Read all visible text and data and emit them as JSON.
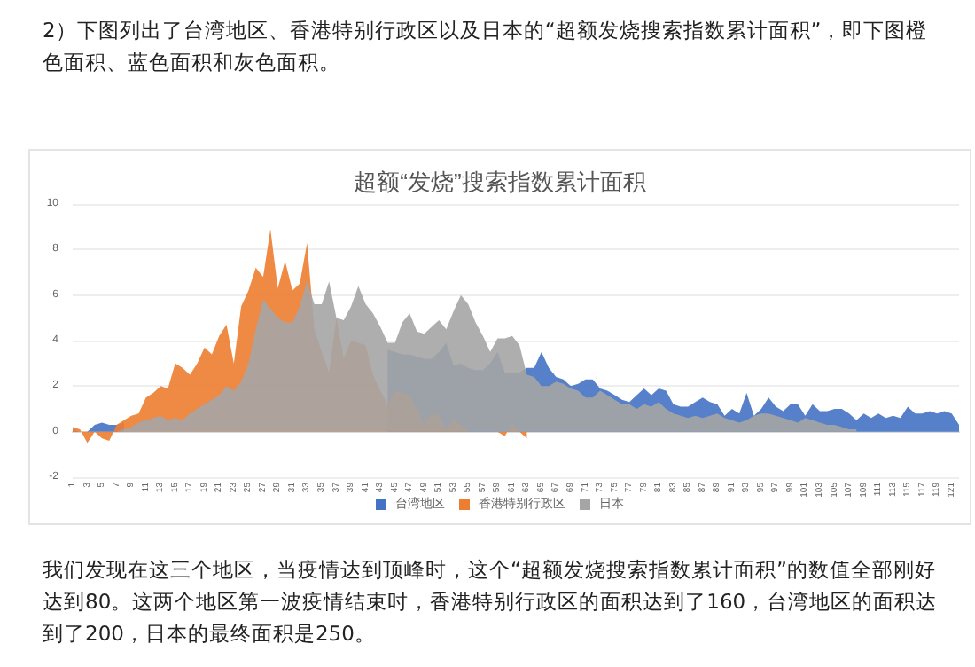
{
  "chart_data": {
    "type": "area",
    "title": "超额“发烧”搜索指数累计面积",
    "annotations": [
      "2）下图列出了台湾地区、香港特别行政区以及日本的“超额发烧搜索指数累计面积”，即下图橙色面积、蓝色面积和灰色面积。",
      "我们发现在这三个地区，当疫情达到顶峰时，这个“超额发烧搜索指数累计面积”的数值全部刚好达到80。这两个地区第一波疫情结束时，香港特别行政区的面积达到了160，台湾地区的面积达到了200，日本的最终面积是250。"
    ],
    "categories": [
      "1",
      null,
      "3",
      null,
      "5",
      null,
      "7",
      null,
      "9",
      null,
      "11",
      null,
      "13",
      null,
      "15",
      null,
      "17",
      null,
      "19",
      null,
      "21",
      null,
      "23",
      null,
      "25",
      null,
      "27",
      null,
      "29",
      null,
      "31",
      null,
      "33",
      null,
      "35",
      null,
      "37",
      null,
      "39",
      null,
      "41",
      null,
      "43",
      null,
      "45",
      null,
      "47",
      null,
      "49",
      null,
      "51",
      null,
      "53",
      null,
      "55",
      null,
      "57",
      null,
      "59",
      null,
      "61",
      null,
      "63",
      null,
      "65",
      null,
      "67",
      null,
      "69",
      null,
      "71",
      null,
      "73",
      null,
      "75",
      null,
      "77",
      null,
      "79",
      null,
      "81",
      null,
      "83",
      null,
      "85",
      null,
      "87",
      null,
      "89",
      null,
      "91",
      null,
      "93",
      null,
      "95",
      null,
      "97",
      null,
      "99",
      null,
      "101",
      null,
      "103",
      null,
      "105",
      null,
      "107",
      null,
      "109",
      null,
      "111",
      null,
      "113",
      null,
      "115",
      null,
      "117",
      null,
      "119",
      null,
      "121",
      null
    ],
    "series": [
      {
        "name": "台湾地区",
        "color": "#4472c4",
        "values": [
          0.1,
          0,
          0,
          0.3,
          0.4,
          0.3,
          0.3,
          0.4,
          null,
          null,
          null,
          null,
          null,
          null,
          null,
          null,
          null,
          null,
          null,
          null,
          null,
          null,
          null,
          null,
          null,
          null,
          null,
          null,
          null,
          null,
          null,
          null,
          null,
          null,
          null,
          null,
          null,
          null,
          null,
          null,
          null,
          null,
          null,
          3.6,
          3.5,
          3.4,
          3.4,
          3.3,
          3.2,
          3.2,
          3.5,
          3.9,
          2.9,
          3.0,
          2.8,
          2.7,
          2.7,
          3.0,
          3.5,
          2.6,
          2.6,
          2.6,
          2.8,
          2.8,
          3.5,
          2.8,
          2.4,
          2.3,
          2.0,
          2.1,
          2.3,
          2.3,
          1.9,
          1.8,
          1.6,
          1.4,
          1.3,
          1.6,
          1.9,
          1.6,
          1.9,
          1.8,
          1.2,
          1.1,
          1.1,
          1.3,
          1.5,
          1.3,
          1.2,
          0.7,
          1.0,
          0.8,
          1.7,
          0.7,
          1.0,
          1.5,
          1.1,
          0.9,
          1.2,
          1.2,
          0.7,
          1.2,
          0.9,
          0.9,
          1.0,
          1.0,
          0.8,
          0.5,
          0.8,
          0.6,
          0.8,
          0.6,
          0.7,
          0.6,
          1.1,
          0.8,
          0.8,
          0.9,
          0.8,
          0.9,
          0.8,
          0.3
        ]
      },
      {
        "name": "香港特别行政区",
        "color": "#ed7d31",
        "values": [
          0.2,
          0.1,
          -0.5,
          0,
          -0.3,
          -0.4,
          0.3,
          0.5,
          0.7,
          0.8,
          1.5,
          1.7,
          2.0,
          1.9,
          3.0,
          2.8,
          2.5,
          3.0,
          3.7,
          3.4,
          4.2,
          4.7,
          3.0,
          5.5,
          6.2,
          7.2,
          6.8,
          8.9,
          6.3,
          7.5,
          6.2,
          6.5,
          8.3,
          4.5,
          3.5,
          2.6,
          5.0,
          3.2,
          4.0,
          3.9,
          3.8,
          2.5,
          1.8,
          1.2,
          1.8,
          1.7,
          1.6,
          1.0,
          0.3,
          0.8,
          0.7,
          0.1,
          0.5,
          0.3,
          0,
          0,
          0,
          0,
          0,
          -0.2,
          0.4,
          0,
          -0.3,
          null,
          null,
          null,
          null,
          null,
          null,
          null,
          null,
          null,
          null,
          null,
          null,
          null,
          null,
          null,
          null,
          null,
          null,
          null,
          null,
          null,
          null,
          null,
          null,
          null,
          null,
          null,
          null,
          null,
          null,
          null,
          null,
          null,
          null,
          null,
          null,
          null,
          null,
          null,
          null,
          null,
          null,
          null,
          null,
          null,
          null,
          null,
          null,
          null,
          null,
          null,
          null,
          null,
          null,
          null,
          null,
          null,
          null,
          null
        ]
      },
      {
        "name": "日本",
        "color": "#a5a5a5",
        "values": [
          0,
          0,
          0,
          0,
          0,
          0,
          0,
          0.1,
          0.2,
          0.4,
          0.5,
          0.6,
          0.7,
          0.5,
          0.6,
          0.5,
          0.8,
          1.0,
          1.2,
          1.4,
          1.6,
          2.0,
          1.8,
          2.2,
          3.0,
          4.5,
          5.8,
          5.4,
          5.0,
          4.8,
          4.8,
          5.5,
          6.6,
          5.6,
          5.6,
          6.6,
          5.0,
          4.9,
          5.5,
          6.4,
          5.6,
          5.2,
          4.6,
          3.9,
          3.9,
          4.8,
          5.2,
          4.4,
          4.3,
          4.6,
          4.9,
          4.5,
          5.3,
          6.0,
          5.6,
          4.8,
          4.2,
          3.5,
          4.1,
          4.1,
          4.2,
          3.8,
          2.5,
          2.4,
          2.0,
          2.0,
          2.2,
          2.1,
          1.9,
          1.8,
          1.5,
          1.5,
          1.8,
          1.6,
          1.4,
          1.2,
          1.2,
          1.0,
          1.2,
          1.1,
          1.3,
          1.0,
          0.8,
          0.7,
          0.6,
          0.7,
          0.6,
          0.7,
          0.8,
          0.6,
          0.5,
          0.4,
          0.5,
          0.7,
          0.8,
          0.8,
          0.7,
          0.6,
          0.5,
          0.4,
          0.6,
          0.5,
          0.4,
          0.3,
          0.3,
          0.2,
          0.1,
          0.1,
          null,
          null,
          null,
          null,
          null,
          null,
          null,
          null,
          null,
          null,
          null,
          null,
          null,
          null
        ]
      }
    ],
    "ylim": [
      -2,
      10
    ],
    "yticks": [
      -2,
      0,
      2,
      4,
      6,
      8,
      10
    ],
    "grid": "y",
    "legend": "bottom"
  }
}
